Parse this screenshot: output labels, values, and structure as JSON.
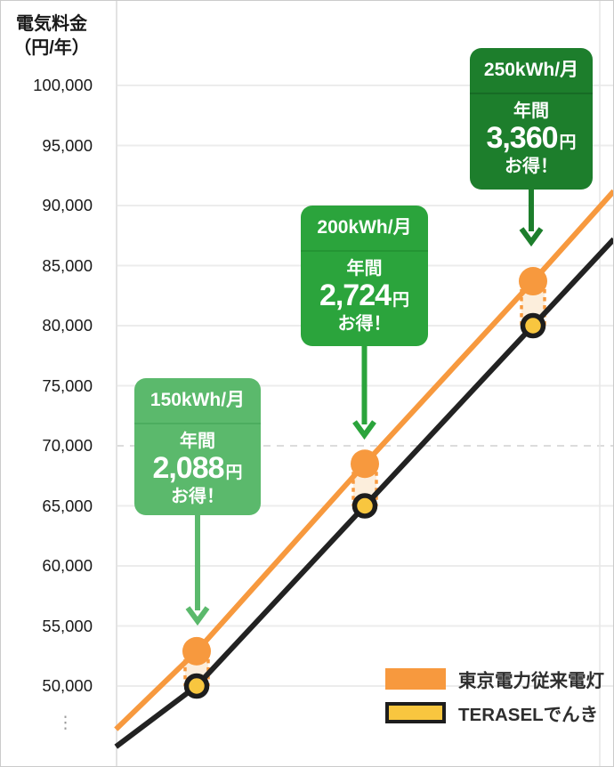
{
  "y_axis": {
    "title_line1": "電気料金",
    "title_line2": "（円/年）",
    "tick_labels": [
      "100,000",
      "95,000",
      "90,000",
      "85,000",
      "80,000",
      "75,000",
      "70,000",
      "65,000",
      "60,000",
      "55,000",
      "50,000"
    ],
    "tick_values": [
      100000,
      95000,
      90000,
      85000,
      80000,
      75000,
      70000,
      65000,
      60000,
      55000,
      50000
    ],
    "ellipsis": "⋮"
  },
  "chart_data": {
    "type": "line",
    "title": "",
    "ylabel": "電気料金（円/年）",
    "x_unit": "kWh/月",
    "ylim": [
      44000,
      103000
    ],
    "grid": "on",
    "grid_values": [
      100000,
      95000,
      90000,
      85000,
      80000,
      75000,
      70000,
      65000,
      60000,
      55000,
      50000
    ],
    "dashed_gridline_value": 70000,
    "x_points_kwh": [
      150,
      200,
      250
    ],
    "series": [
      {
        "name": "東京電力従来電灯",
        "color": "#F7993E",
        "marker_fill": "#F7993E",
        "x_kwh": [
          126,
          150,
          200,
          250,
          274
        ],
        "values": [
          46400,
          52900,
          68500,
          83700,
          91200
        ]
      },
      {
        "name": "TERASELでんき",
        "color": "#222222",
        "marker_fill": "#F8C63F",
        "marker_ring": "#1D1D1D",
        "x_kwh": [
          126,
          150,
          200,
          250,
          274
        ],
        "values": [
          44950,
          50000,
          65000,
          80000,
          87200
        ]
      }
    ],
    "annual_savings_yen": [
      2088,
      2724,
      3360
    ],
    "band_fill": "#FCEEDC",
    "band_border": "#F7993E",
    "legend_position": "bottom-right"
  },
  "callouts": [
    {
      "usage": "150kWh/月",
      "period": "年間",
      "amount": "2,088",
      "unit": "円",
      "note": "お得！",
      "bg": "#5BB96C",
      "divider": "#4CAD5F",
      "arrow": "#5BB96C"
    },
    {
      "usage": "200kWh/月",
      "period": "年間",
      "amount": "2,724",
      "unit": "円",
      "note": "お得！",
      "bg": "#2BA43C",
      "divider": "#249534",
      "arrow": "#2BA43C"
    },
    {
      "usage": "250kWh/月",
      "period": "年間",
      "amount": "3,360",
      "unit": "円",
      "note": "お得！",
      "bg": "#1D7E2C",
      "divider": "#176B25",
      "arrow": "#1D7E2C"
    }
  ],
  "legend": {
    "items": [
      {
        "label": "東京電力従来電灯",
        "swatch_fill": "#F7993E",
        "swatch_border": "none"
      },
      {
        "label": "TERASELでんき",
        "swatch_fill": "#F8C63F",
        "swatch_border": "#1D1D1D"
      }
    ]
  }
}
